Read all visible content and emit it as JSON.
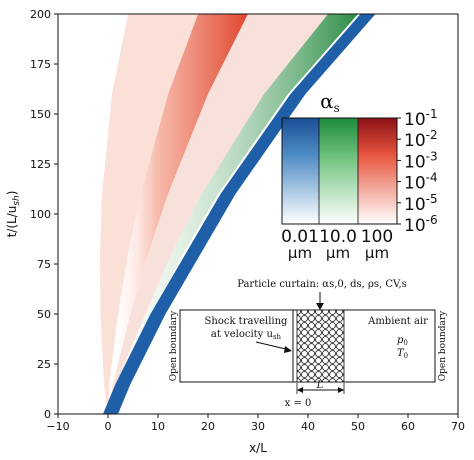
{
  "chart_data": {
    "type": "heatmap",
    "title": "",
    "xlabel": "x/L",
    "ylabel": "t/(L/u",
    "ylabel_sub": "sh",
    "ylabel_tail": ")",
    "xlim": [
      -10,
      70
    ],
    "ylim": [
      0,
      200
    ],
    "xticks": [
      "−10",
      "0",
      "10",
      "20",
      "30",
      "40",
      "50",
      "60",
      "70"
    ],
    "yticks": [
      "0",
      "25",
      "50",
      "75",
      "100",
      "125",
      "150",
      "175",
      "200"
    ],
    "xtick_values": [
      -10,
      0,
      10,
      20,
      30,
      40,
      50,
      60,
      70
    ],
    "ytick_values": [
      0,
      25,
      50,
      75,
      100,
      125,
      150,
      175,
      200
    ],
    "series": [
      {
        "name": "0.01 µm",
        "color": "#1f5fa8",
        "front_x": [
          0.5,
          3,
          6,
          10,
          17,
          24,
          31,
          38,
          45,
          52
        ],
        "front_t": [
          0,
          15,
          30,
          50,
          80,
          110,
          135,
          160,
          180,
          200
        ],
        "width": 3
      },
      {
        "name": "10.0 µm",
        "color": "#2f8f46",
        "front_x": [
          0,
          2,
          5,
          9,
          15,
          22,
          29,
          36,
          43,
          50
        ],
        "front_t": [
          0,
          15,
          30,
          50,
          80,
          110,
          135,
          160,
          180,
          200
        ],
        "width": 12
      },
      {
        "name": "100 µm",
        "color": "#d9372b",
        "front_x": [
          0,
          1,
          2.5,
          4.5,
          8,
          12,
          16,
          20,
          24,
          28
        ],
        "front_t": [
          0,
          15,
          30,
          50,
          80,
          110,
          135,
          160,
          180,
          200
        ],
        "width": 30
      }
    ],
    "colorbar": {
      "title": "α",
      "title_sub": "s",
      "columns": [
        {
          "size": "0.01",
          "unit": "µm",
          "dark": "#1a4f96",
          "light": "#f7fbff"
        },
        {
          "size": "10.0",
          "unit": "µm",
          "dark": "#1d8a3b",
          "light": "#f7fcf5"
        },
        {
          "size": "100",
          "unit": "µm",
          "dark": "#8c1016",
          "light": "#fff5f0"
        }
      ],
      "ticks": [
        "10",
        "10",
        "10",
        "10",
        "10",
        "10"
      ],
      "tick_exponents": [
        "-1",
        "-2",
        "-3",
        "-4",
        "-5",
        "-6"
      ]
    }
  },
  "inset": {
    "curtain_label": "Particle curtain: α",
    "curtain_label_vars": "s,0, d",
    "shock_line1": "Shock travelling",
    "shock_line2": "at velocity u",
    "shock_sub": "sh",
    "ambient_label": "Ambient air",
    "p0": "p",
    "p0_sub": "0",
    "t0": "T",
    "t0_sub": "0",
    "open_left": "Open boundary",
    "open_right": "Open boundary",
    "length_label": "L",
    "origin_label": "x = 0",
    "curtain_vars_full": "Particle curtain: αs,0, ds, ρs, CV,s"
  }
}
